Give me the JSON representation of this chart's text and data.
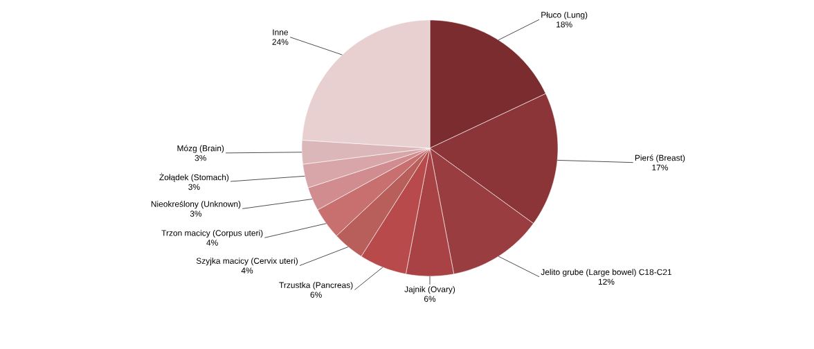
{
  "chart_data": {
    "type": "pie",
    "categories": [
      "Płuco (Lung)",
      "Pierś (Breast)",
      "Jelito grube (Large bowel) C18-C21",
      "Jajnik (Ovary)",
      "Trzustka (Pancreas)",
      "Szyjka macicy (Cervix uteri)",
      "Trzon macicy (Corpus uteri)",
      "Nieokreślony (Unknown)",
      "Żołądek (Stomach)",
      "Mózg (Brain)",
      "Inne"
    ],
    "values": [
      18,
      17,
      12,
      6,
      6,
      4,
      4,
      3,
      3,
      3,
      24
    ],
    "value_labels": [
      "18%",
      "17%",
      "12%",
      "6%",
      "6%",
      "4%",
      "4%",
      "3%",
      "3%",
      "3%",
      "24%"
    ],
    "colors": [
      "#7b2c2f",
      "#8b3538",
      "#9a3d40",
      "#a84244",
      "#b84a4b",
      "#b85f5c",
      "#c87070",
      "#d08c8e",
      "#d8a6a8",
      "#dcb7b9",
      "#e8d0d1"
    ]
  }
}
